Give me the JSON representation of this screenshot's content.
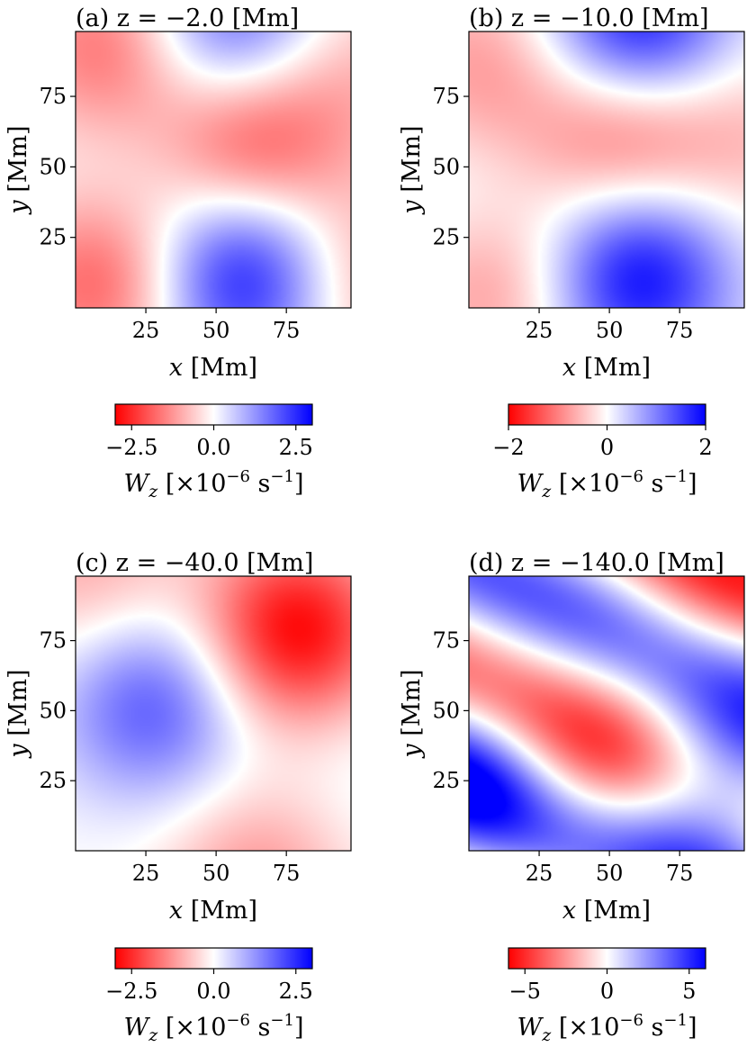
{
  "chart_data": [
    {
      "type": "heatmap",
      "title": "(a) z = −2.0 [Mm]",
      "xlabel": "x [Mm]",
      "ylabel": "y [Mm]",
      "xlim": [
        0,
        98
      ],
      "ylim": [
        0,
        98
      ],
      "xticks": [
        25,
        50,
        75
      ],
      "yticks": [
        25,
        50,
        75
      ],
      "colormap": "bwr",
      "colorbar": {
        "label": "W_z [×10^−6 s^−1]",
        "range": [
          -3.0,
          3.0
        ],
        "ticks": [
          -2.5,
          0.0,
          2.5
        ],
        "tick_labels": [
          "−2.5",
          "0.0",
          "2.5"
        ]
      },
      "features": [
        {
          "x": 60,
          "y": 12,
          "value": 3.0
        },
        {
          "x": 62,
          "y": 58,
          "value": -2.2
        },
        {
          "x": 10,
          "y": 10,
          "value": -2.0
        },
        {
          "x": 12,
          "y": 92,
          "value": -1.8
        },
        {
          "x": 55,
          "y": 100,
          "value": 2.2
        },
        {
          "x": 15,
          "y": 48,
          "value": 0.4
        },
        {
          "x": 100,
          "y": 10,
          "value": -1.2
        },
        {
          "x": 100,
          "y": 85,
          "value": -0.8
        }
      ]
    },
    {
      "type": "heatmap",
      "title": "(b) z = −10.0 [Mm]",
      "xlabel": "x [Mm]",
      "ylabel": "y [Mm]",
      "xlim": [
        0,
        98
      ],
      "ylim": [
        0,
        98
      ],
      "xticks": [
        25,
        50,
        75
      ],
      "yticks": [
        25,
        50,
        75
      ],
      "colormap": "bwr",
      "colorbar": {
        "label": "W_z [×10^−6 s^−1]",
        "range": [
          -2.0,
          2.0
        ],
        "ticks": [
          -2,
          0,
          2
        ],
        "tick_labels": [
          "−2",
          "0",
          "2"
        ]
      },
      "features": [
        {
          "x": 60,
          "y": 12,
          "value": 2.0
        },
        {
          "x": 55,
          "y": 62,
          "value": -1.3
        },
        {
          "x": 60,
          "y": 100,
          "value": 2.0
        },
        {
          "x": 10,
          "y": 8,
          "value": -0.9
        },
        {
          "x": 5,
          "y": 85,
          "value": -0.8
        },
        {
          "x": 0,
          "y": 38,
          "value": 0.3
        },
        {
          "x": 98,
          "y": 60,
          "value": -0.5
        }
      ]
    },
    {
      "type": "heatmap",
      "title": "(c) z = −40.0 [Mm]",
      "xlabel": "x [Mm]",
      "ylabel": "y [Mm]",
      "xlim": [
        0,
        98
      ],
      "ylim": [
        0,
        98
      ],
      "xticks": [
        25,
        50,
        75
      ],
      "yticks": [
        25,
        50,
        75
      ],
      "colormap": "bwr",
      "colorbar": {
        "label": "W_z [×10^−6 s^−1]",
        "range": [
          -3.0,
          3.0
        ],
        "ticks": [
          -2.5,
          0.0,
          2.5
        ],
        "tick_labels": [
          "−2.5",
          "0.0",
          "2.5"
        ]
      },
      "features": [
        {
          "x": 78,
          "y": 78,
          "value": -3.0
        },
        {
          "x": 28,
          "y": 52,
          "value": 2.0
        },
        {
          "x": 65,
          "y": -8,
          "value": -1.2
        },
        {
          "x": 5,
          "y": 100,
          "value": -1.0
        },
        {
          "x": 98,
          "y": 30,
          "value": 0.3
        }
      ]
    },
    {
      "type": "heatmap",
      "title": "(d) z = −140.0 [Mm]",
      "xlabel": "x [Mm]",
      "ylabel": "y [Mm]",
      "xlim": [
        0,
        98
      ],
      "ylim": [
        0,
        98
      ],
      "xticks": [
        25,
        50,
        75
      ],
      "yticks": [
        25,
        50,
        75
      ],
      "colormap": "bwr",
      "colorbar": {
        "label": "W_z [×10^−6 s^−1]",
        "range": [
          -6.0,
          6.0
        ],
        "ticks": [
          -5,
          0,
          5
        ],
        "tick_labels": [
          "−5",
          "0",
          "5"
        ]
      },
      "stripes": {
        "direction": [
          1,
          2.2
        ],
        "phase": 0.49,
        "wavelength": 74,
        "amplitude": 4.0,
        "sign": -1
      },
      "features": [
        {
          "x": 90,
          "y": 22,
          "value": 5.5
        },
        {
          "x": 0,
          "y": 25,
          "value": 4.0
        },
        {
          "x": 40,
          "y": 22,
          "value": -2.5
        },
        {
          "x": 85,
          "y": 82,
          "value": -2.0
        }
      ]
    }
  ]
}
